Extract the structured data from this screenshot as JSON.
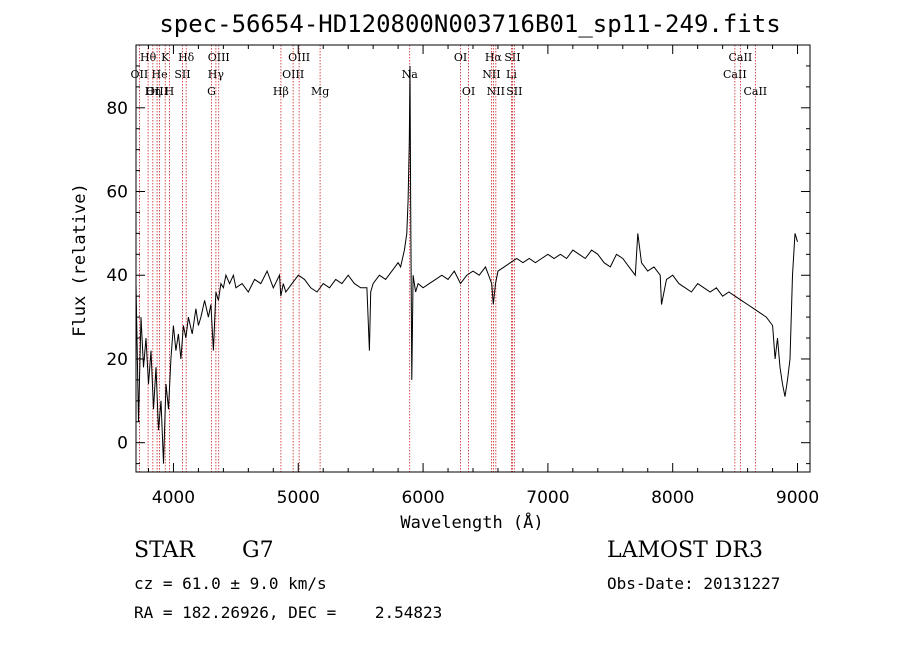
{
  "chart_data": {
    "type": "line",
    "title": "spec-56654-HD120800N003716B01_sp11-249.fits",
    "xlabel": "Wavelength (Å)",
    "ylabel": "Flux (relative)",
    "xlim": [
      3700,
      9100
    ],
    "ylim": [
      -7,
      95
    ],
    "xticks": [
      4000,
      5000,
      6000,
      7000,
      8000,
      9000
    ],
    "yticks": [
      0,
      20,
      40,
      60,
      80
    ],
    "grid": false,
    "series": [
      {
        "x": [
          3700,
          3720,
          3740,
          3760,
          3780,
          3800,
          3820,
          3840,
          3860,
          3880,
          3900,
          3920,
          3940,
          3960,
          3980,
          4000,
          4020,
          4040,
          4060,
          4080,
          4100,
          4120,
          4150,
          4180,
          4200,
          4220,
          4250,
          4280,
          4300,
          4320,
          4340,
          4360,
          4380,
          4400,
          4420,
          4450,
          4480,
          4500,
          4550,
          4600,
          4650,
          4700,
          4750,
          4800,
          4850,
          4860,
          4880,
          4900,
          4950,
          5000,
          5050,
          5100,
          5150,
          5200,
          5250,
          5300,
          5350,
          5400,
          5450,
          5500,
          5550,
          5570,
          5580,
          5600,
          5650,
          5700,
          5750,
          5800,
          5820,
          5850,
          5870,
          5880,
          5890,
          5895,
          5900,
          5910,
          5920,
          5940,
          5960,
          6000,
          6050,
          6100,
          6150,
          6200,
          6250,
          6300,
          6350,
          6400,
          6450,
          6500,
          6550,
          6563,
          6580,
          6600,
          6650,
          6700,
          6750,
          6800,
          6850,
          6900,
          6950,
          7000,
          7050,
          7100,
          7150,
          7200,
          7250,
          7300,
          7350,
          7400,
          7450,
          7500,
          7550,
          7600,
          7650,
          7700,
          7720,
          7750,
          7800,
          7850,
          7900,
          7910,
          7950,
          8000,
          8050,
          8100,
          8150,
          8200,
          8250,
          8300,
          8350,
          8400,
          8450,
          8500,
          8550,
          8600,
          8650,
          8700,
          8750,
          8800,
          8820,
          8840,
          8860,
          8880,
          8900,
          8920,
          8940,
          8960,
          8980,
          9000
        ],
        "y": [
          38,
          5,
          30,
          18,
          25,
          14,
          22,
          8,
          18,
          3,
          10,
          -5,
          14,
          8,
          20,
          28,
          22,
          26,
          20,
          28,
          25,
          30,
          26,
          32,
          28,
          30,
          34,
          30,
          33,
          22,
          36,
          34,
          38,
          37,
          40,
          38,
          40,
          37,
          38,
          36,
          39,
          38,
          41,
          37,
          40,
          35,
          38,
          36,
          38,
          40,
          39,
          37,
          36,
          38,
          37,
          39,
          38,
          40,
          38,
          37,
          37,
          22,
          36,
          38,
          40,
          39,
          41,
          43,
          42,
          46,
          50,
          58,
          72,
          90,
          60,
          15,
          40,
          36,
          38,
          37,
          38,
          39,
          40,
          39,
          41,
          38,
          40,
          41,
          40,
          42,
          38,
          33,
          38,
          41,
          42,
          43,
          44,
          43,
          44,
          43,
          44,
          45,
          44,
          45,
          44,
          46,
          45,
          44,
          46,
          45,
          43,
          42,
          45,
          44,
          42,
          40,
          50,
          43,
          41,
          42,
          40,
          33,
          39,
          40,
          38,
          37,
          36,
          38,
          37,
          36,
          37,
          35,
          36,
          35,
          34,
          33,
          32,
          31,
          30,
          28,
          20,
          25,
          18,
          14,
          11,
          15,
          20,
          40,
          50,
          48
        ]
      }
    ],
    "lines": [
      {
        "name": "Hθ",
        "x": 3797,
        "row": 0
      },
      {
        "name": "OII",
        "x": 3727,
        "row": 1
      },
      {
        "name": "OIII",
        "x": 3869,
        "row": 2
      },
      {
        "name": "K",
        "x": 3934,
        "row": 0
      },
      {
        "name": "He",
        "x": 3889,
        "row": 1
      },
      {
        "name": "Hη",
        "x": 3835,
        "row": 2
      },
      {
        "name": "SII",
        "x": 4072,
        "row": 1
      },
      {
        "name": "H",
        "x": 3968,
        "row": 2
      },
      {
        "name": "Hδ",
        "x": 4102,
        "row": 0
      },
      {
        "name": "OIII",
        "x": 4363,
        "row": 0
      },
      {
        "name": "Hγ",
        "x": 4340,
        "row": 1
      },
      {
        "name": "G",
        "x": 4305,
        "row": 2
      },
      {
        "name": "OIII",
        "x": 5007,
        "row": 0
      },
      {
        "name": "OIII",
        "x": 4959,
        "row": 1
      },
      {
        "name": "Hβ",
        "x": 4861,
        "row": 2
      },
      {
        "name": "Mg",
        "x": 5175,
        "row": 2
      },
      {
        "name": "Na",
        "x": 5893,
        "row": 1
      },
      {
        "name": "OI",
        "x": 6300,
        "row": 0
      },
      {
        "name": "OI",
        "x": 6364,
        "row": 2
      },
      {
        "name": "Hα",
        "x": 6563,
        "row": 0
      },
      {
        "name": "NII",
        "x": 6548,
        "row": 1
      },
      {
        "name": "NII",
        "x": 6583,
        "row": 2
      },
      {
        "name": "SII",
        "x": 6716,
        "row": 0
      },
      {
        "name": "Li",
        "x": 6708,
        "row": 1
      },
      {
        "name": "SII",
        "x": 6731,
        "row": 2
      },
      {
        "name": "CaII",
        "x": 8542,
        "row": 0
      },
      {
        "name": "CaII",
        "x": 8498,
        "row": 1
      },
      {
        "name": "CaII",
        "x": 8662,
        "row": 2
      }
    ]
  },
  "info": {
    "object_type": "STAR",
    "subclass": "G7",
    "survey": "LAMOST DR3",
    "cz": "cz = 61.0 ± 9.0 km/s",
    "obs_date": "Obs-Date: 20131227",
    "coords": "RA = 182.26926, DEC =    2.54823"
  },
  "colors": {
    "spectrum": "#000000",
    "line_markers": "#cc2222"
  }
}
